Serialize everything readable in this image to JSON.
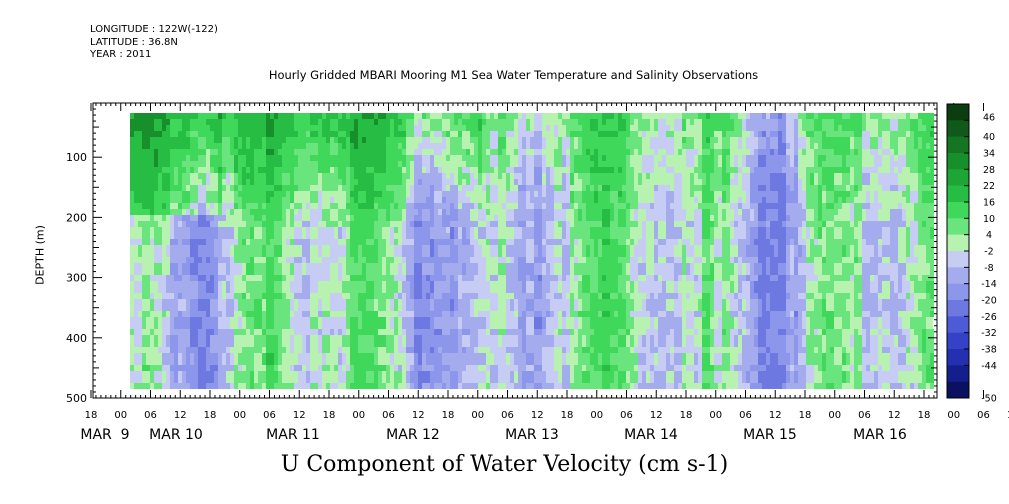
{
  "header": {
    "longitude": "LONGITUDE : 122W(-122)",
    "latitude": "LATITUDE : 36.8N",
    "year": "YEAR : 2011"
  },
  "chart_data": {
    "type": "heatmap",
    "title": "Hourly Gridded MBARI Mooring M1 Sea Water Temperature and Salinity Observations",
    "xlabel": "U Component of Water Velocity (cm s-1)",
    "ylabel": "DEPTH (m)",
    "y_axis": {
      "reversed": true,
      "range": [
        10,
        500
      ],
      "ticks": [
        100,
        200,
        300,
        400,
        500
      ]
    },
    "x_axis": {
      "hour_ticks": [
        "18",
        "00",
        "06",
        "12",
        "18",
        "00",
        "06",
        "12",
        "18",
        "00",
        "06",
        "12",
        "18",
        "00",
        "06",
        "12",
        "18",
        "00",
        "06",
        "12",
        "18",
        "00",
        "06",
        "12",
        "18",
        "00",
        "06",
        "12",
        "18",
        "00",
        "06",
        "12",
        "18"
      ],
      "day_labels": [
        "MAR  9",
        "MAR 10",
        "MAR 11",
        "MAR 12",
        "MAR 13",
        "MAR 14",
        "MAR 15",
        "MAR 16"
      ]
    },
    "colorbar": {
      "levels": [
        46,
        40,
        34,
        28,
        22,
        16,
        10,
        4,
        -2,
        -8,
        -14,
        -20,
        -26,
        -32,
        -38,
        -44,
        -50
      ],
      "range": [
        -50,
        52
      ]
    },
    "field_description": "Green (positive, 4 to 34 cm/s) dominates the upper ~250 m on MAR 9–12; alternating blue (negative, -2 to -20 cm/s) and light green vertical bands elsewhere."
  },
  "colors": {
    "positive_strong": "#0a9a2a",
    "positive": "#3fd85a",
    "near_zero": "#b8f2b0",
    "negative": "#8c96ea",
    "negative_strong": "#3e4fd0"
  }
}
